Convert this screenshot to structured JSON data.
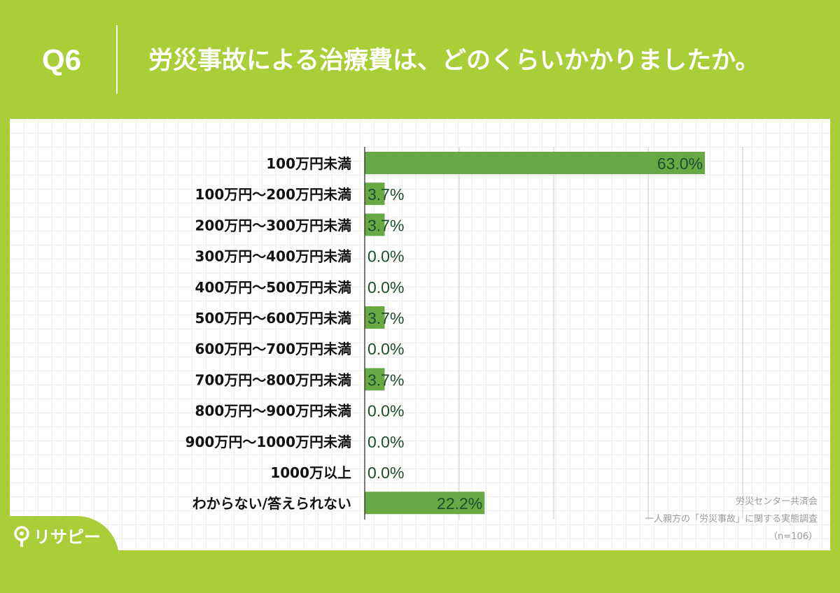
{
  "header": {
    "question_number": "Q6",
    "question_text": "労災事故による治療費は、どのくらいかかりましたか。"
  },
  "colors": {
    "background": "#a8cf38",
    "bar": "#68a946",
    "value_label": "#1e4d2b",
    "category_label": "#111111"
  },
  "chart_data": {
    "type": "bar",
    "orientation": "horizontal",
    "categories": [
      "100万円未満",
      "100万円〜200万円未満",
      "200万円〜300万円未満",
      "300万円〜400万円未満",
      "400万円〜500万円未満",
      "500万円〜600万円未満",
      "600万円〜700万円未満",
      "700万円〜800万円未満",
      "800万円〜900万円未満",
      "900万円〜1000万円未満",
      "1000万以上",
      "わからない/答えられない"
    ],
    "values": [
      63.0,
      3.7,
      3.7,
      0.0,
      0.0,
      3.7,
      0.0,
      3.7,
      0.0,
      0.0,
      0.0,
      22.2
    ],
    "value_labels": [
      "63.0%",
      "3.7%",
      "3.7%",
      "0.0%",
      "0.0%",
      "3.7%",
      "0.0%",
      "3.7%",
      "0.0%",
      "0.0%",
      "0.0%",
      "22.2%"
    ],
    "xlim": [
      0,
      70
    ],
    "x_gridlines": [
      0,
      17.5,
      35,
      52.5,
      70
    ],
    "grid": true,
    "legend": false
  },
  "source": {
    "line1": "労災センター共済会",
    "line2": "一人親方の「労災事故」に関する実態調査",
    "line3": "（n=106）"
  },
  "logo": {
    "text": "リサピー",
    "mark_icon": "lightbulb-icon"
  }
}
